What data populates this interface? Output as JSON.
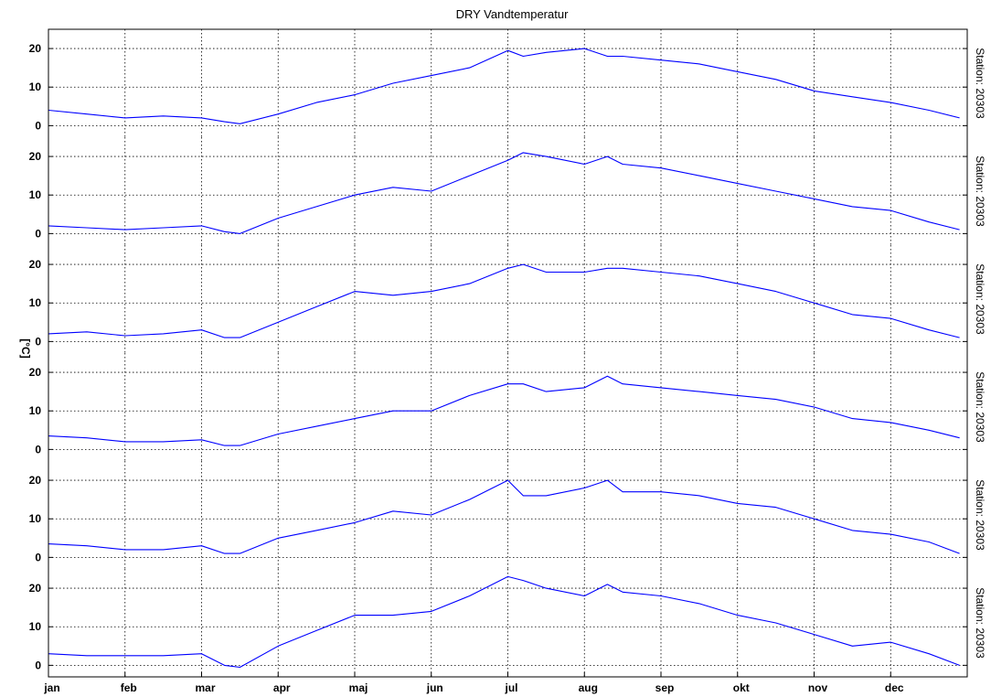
{
  "chart_data": {
    "type": "line",
    "title": "DRY Vandtemperatur",
    "ylabel": "[°C]",
    "xlabel": "",
    "x_months": [
      "jan",
      "feb",
      "mar",
      "apr",
      "maj",
      "jun",
      "jul",
      "aug",
      "sep",
      "okt",
      "nov",
      "dec"
    ],
    "x_unit": "month",
    "xlim": [
      1,
      13
    ],
    "ylim_per_panel": [
      -3,
      25
    ],
    "yticks": [
      0,
      10,
      20
    ],
    "grid": true,
    "panels": [
      {
        "station_label": "Station: 20303",
        "x": [
          1,
          1.5,
          2,
          2.5,
          3,
          3.3,
          3.5,
          4,
          4.5,
          5,
          5.5,
          6,
          6.5,
          7,
          7.2,
          7.5,
          8,
          8.3,
          8.5,
          9,
          9.5,
          10,
          10.5,
          11,
          11.5,
          12,
          12.5,
          12.9
        ],
        "y": [
          4,
          3,
          2,
          2.5,
          2,
          1,
          0.5,
          3,
          6,
          8,
          11,
          13,
          15,
          19.5,
          18,
          19,
          20,
          18,
          18,
          17,
          16,
          14,
          12,
          9,
          7.5,
          6,
          4,
          2
        ]
      },
      {
        "station_label": "Station: 20303",
        "x": [
          1,
          1.5,
          2,
          2.5,
          3,
          3.3,
          3.5,
          4,
          4.5,
          5,
          5.5,
          6,
          6.5,
          7,
          7.2,
          7.5,
          8,
          8.3,
          8.5,
          9,
          9.5,
          10,
          10.5,
          11,
          11.5,
          12,
          12.5,
          12.9
        ],
        "y": [
          2,
          1.5,
          1,
          1.5,
          2,
          0.5,
          0,
          4,
          7,
          10,
          12,
          11,
          15,
          19,
          21,
          20,
          18,
          20,
          18,
          17,
          15,
          13,
          11,
          9,
          7,
          6,
          3,
          1
        ]
      },
      {
        "station_label": "Station: 20303",
        "x": [
          1,
          1.5,
          2,
          2.5,
          3,
          3.3,
          3.5,
          4,
          4.5,
          5,
          5.5,
          6,
          6.5,
          7,
          7.2,
          7.5,
          8,
          8.3,
          8.5,
          9,
          9.5,
          10,
          10.5,
          11,
          11.5,
          12,
          12.5,
          12.9
        ],
        "y": [
          2,
          2.5,
          1.5,
          2,
          3,
          1,
          1,
          5,
          9,
          13,
          12,
          13,
          15,
          19,
          20,
          18,
          18,
          19,
          19,
          18,
          17,
          15,
          13,
          10,
          7,
          6,
          3,
          1
        ]
      },
      {
        "station_label": "Station: 20303",
        "x": [
          1,
          1.5,
          2,
          2.5,
          3,
          3.3,
          3.5,
          4,
          4.5,
          5,
          5.5,
          6,
          6.5,
          7,
          7.2,
          7.5,
          8,
          8.3,
          8.5,
          9,
          9.5,
          10,
          10.5,
          11,
          11.5,
          12,
          12.5,
          12.9
        ],
        "y": [
          3.5,
          3,
          2,
          2,
          2.5,
          1,
          1,
          4,
          6,
          8,
          10,
          10,
          14,
          17,
          17,
          15,
          16,
          19,
          17,
          16,
          15,
          14,
          13,
          11,
          8,
          7,
          5,
          3
        ]
      },
      {
        "station_label": "Station: 20303",
        "x": [
          1,
          1.5,
          2,
          2.5,
          3,
          3.3,
          3.5,
          4,
          4.5,
          5,
          5.5,
          6,
          6.5,
          7,
          7.2,
          7.5,
          8,
          8.3,
          8.5,
          9,
          9.5,
          10,
          10.5,
          11,
          11.5,
          12,
          12.5,
          12.9
        ],
        "y": [
          3.5,
          3,
          2,
          2,
          3,
          1,
          1,
          5,
          7,
          9,
          12,
          11,
          15,
          20,
          16,
          16,
          18,
          20,
          17,
          17,
          16,
          14,
          13,
          10,
          7,
          6,
          4,
          1
        ]
      },
      {
        "station_label": "Station: 20303",
        "x": [
          1,
          1.5,
          2,
          2.5,
          3,
          3.3,
          3.5,
          4,
          4.5,
          5,
          5.5,
          6,
          6.5,
          7,
          7.2,
          7.5,
          8,
          8.3,
          8.5,
          9,
          9.5,
          10,
          10.5,
          11,
          11.5,
          12,
          12.5,
          12.9
        ],
        "y": [
          3,
          2.5,
          2.5,
          2.5,
          3,
          0,
          -0.5,
          5,
          9,
          13,
          13,
          14,
          18,
          23,
          22,
          20,
          18,
          21,
          19,
          18,
          16,
          13,
          11,
          8,
          5,
          6,
          3,
          0
        ]
      }
    ]
  }
}
